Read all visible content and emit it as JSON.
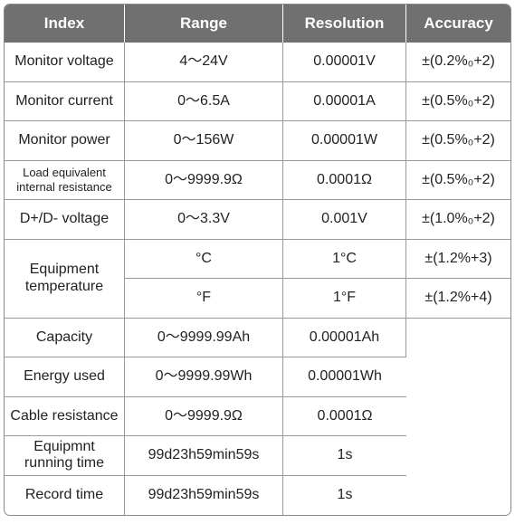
{
  "headers": [
    "Index",
    "Range",
    "Resolution",
    "Accuracy"
  ],
  "rows": [
    {
      "index": "Monitor voltage",
      "range": "4～24V",
      "resolution": "0.00001V",
      "accuracy": "±(0.2%₀+2)"
    },
    {
      "index": "Monitor current",
      "range": "0～6.5A",
      "resolution": "0.00001A",
      "accuracy": "±(0.5%₀+2)"
    },
    {
      "index": "Monitor power",
      "range": "0～156W",
      "resolution": "0.00001W",
      "accuracy": "±(0.5%₀+2)"
    },
    {
      "index_line1": "Load equivalent",
      "index_line2": "internal resistance",
      "range": "0～9999.9Ω",
      "resolution": "0.0001Ω",
      "accuracy": "±(0.5%₀+2)"
    },
    {
      "index": "D+/D- voltage",
      "range": "0～3.3V",
      "resolution": "0.001V",
      "accuracy": "±(1.0%₀+2)"
    },
    {
      "index_line1": "Equipment",
      "index_line2": "temperature",
      "range": "°C",
      "resolution": "1°C",
      "accuracy": "±(1.2%+3)"
    },
    {
      "range": "°F",
      "resolution": "1°F",
      "accuracy": "±(1.2%+4)"
    },
    {
      "index": "Capacity",
      "range": "0～9999.99Ah",
      "resolution": "0.00001Ah",
      "accuracy": ""
    },
    {
      "index": "Energy used",
      "range": "0～9999.99Wh",
      "resolution": "0.00001Wh",
      "accuracy": ""
    },
    {
      "index": "Cable resistance",
      "range": "0～9999.9Ω",
      "resolution": "0.0001Ω",
      "accuracy": ""
    },
    {
      "index_line1": "Equipmnt",
      "index_line2": "running time",
      "range": "99d23h59min59s",
      "resolution": "1s",
      "accuracy": ""
    },
    {
      "index": "Record time",
      "range": "99d23h59min59s",
      "resolution": "1s",
      "accuracy": ""
    }
  ]
}
